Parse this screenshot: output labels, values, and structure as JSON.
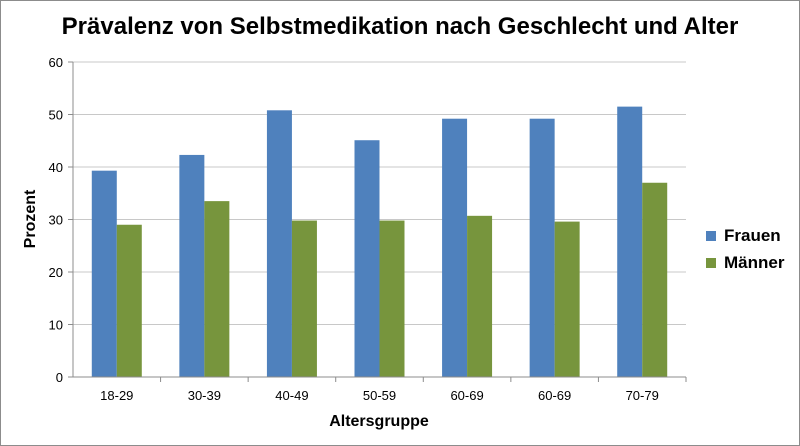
{
  "chart_data": {
    "type": "bar",
    "title": "Prävalenz von Selbstmedikation nach Geschlecht und Alter",
    "xlabel": "Altersgruppe",
    "ylabel": "Prozent",
    "categories": [
      "18-29",
      "30-39",
      "40-49",
      "50-59",
      "60-69",
      "60-69",
      "70-79"
    ],
    "series": [
      {
        "name": "Frauen",
        "color": "#4f81bd",
        "values": [
          39.3,
          42.3,
          50.8,
          45.1,
          49.2,
          49.2,
          51.5
        ]
      },
      {
        "name": "Männer",
        "color": "#77953d",
        "values": [
          29.0,
          33.5,
          29.8,
          29.8,
          30.7,
          29.6,
          37.0
        ]
      }
    ],
    "ylim": [
      0,
      60
    ],
    "yticks": [
      0,
      10,
      20,
      30,
      40,
      50,
      60
    ],
    "grid": true,
    "legend_position": "right"
  }
}
